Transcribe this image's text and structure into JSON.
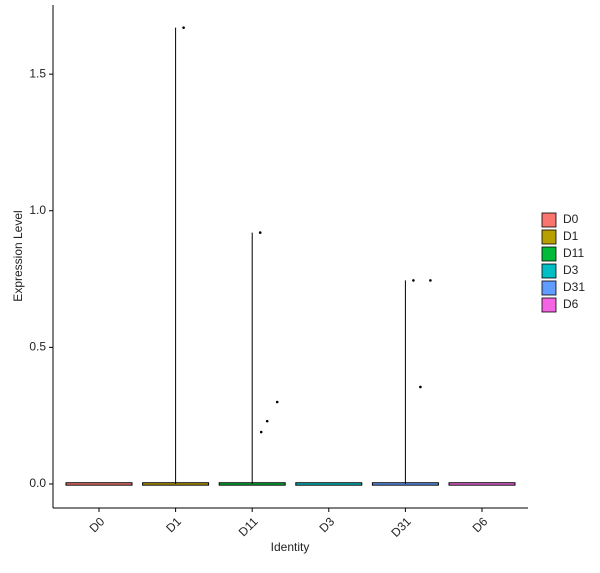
{
  "chart_data": {
    "type": "violin",
    "x_label": "Identity",
    "y_label": "Expression Level",
    "categories": [
      "D0",
      "D1",
      "D11",
      "D3",
      "D31",
      "D6"
    ],
    "series": [
      {
        "name": "D0",
        "color": "#F8766D",
        "values": [
          0
        ]
      },
      {
        "name": "D1",
        "color": "#B79F00",
        "values": [
          0,
          1.67
        ]
      },
      {
        "name": "D11",
        "color": "#00BA38",
        "values": [
          0,
          0.92,
          0.3,
          0.23,
          0.19
        ]
      },
      {
        "name": "D3",
        "color": "#00BFC4",
        "values": [
          0
        ]
      },
      {
        "name": "D31",
        "color": "#619CFF",
        "values": [
          0,
          0.745,
          0.745,
          0.355
        ]
      },
      {
        "name": "D6",
        "color": "#F564E3",
        "values": [
          0
        ]
      }
    ],
    "ylim": [
      -0.088,
      1.753
    ],
    "yticks": [
      {
        "value": 0,
        "label": "0.0"
      },
      0.5,
      {
        "value": 1,
        "label": "1.0"
      },
      1.5
    ],
    "legend": "right"
  }
}
